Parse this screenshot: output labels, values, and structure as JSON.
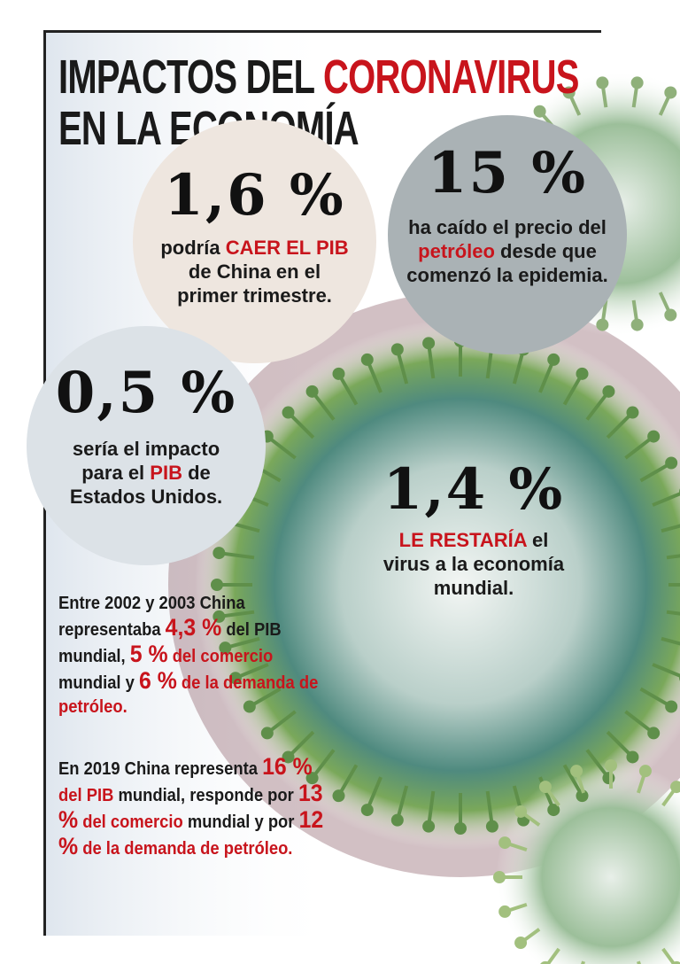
{
  "header": {
    "title": [
      {
        "text": "IMPACTOS DEL ",
        "color": "#1a1a1a"
      },
      {
        "text": "CORONAVIRUS",
        "color": "#c8141c"
      },
      {
        "text": "EN LA ECONOMÍA",
        "color": "#1a1a1a"
      }
    ]
  },
  "stats": [
    {
      "figure": "1,6 %",
      "text": [
        {
          "text": "podría ",
          "color": "#1a1a1a"
        },
        {
          "text": "CAER EL PIB",
          "color": "#c8141c"
        },
        {
          "text": " de China en el primer trimestre.",
          "color": "#1a1a1a"
        }
      ]
    },
    {
      "figure": "15 %",
      "text": [
        {
          "text": "ha caído el precio del ",
          "color": "#1a1a1a"
        },
        {
          "text": "petróleo",
          "color": "#c8141c"
        },
        {
          "text": " desde que comenzó la epidemia.",
          "color": "#1a1a1a"
        }
      ]
    },
    {
      "figure": "0,5 %",
      "text": [
        {
          "text": "sería el impacto para el ",
          "color": "#1a1a1a"
        },
        {
          "text": "PIB",
          "color": "#c8141c"
        },
        {
          "text": " de Estados Unidos.",
          "color": "#1a1a1a"
        }
      ]
    },
    {
      "figure": "1,4 %",
      "text": [
        {
          "text": "LE RESTARÍA",
          "color": "#c8141c"
        },
        {
          "text": " el virus a la economía mundial.",
          "color": "#1a1a1a"
        }
      ]
    }
  ],
  "paragraphs": [
    [
      {
        "text": "Entre 2002 y 2003 China representaba ",
        "color": "#1a1a1a"
      },
      {
        "text": "4,3 %",
        "color": "#c8141c"
      },
      {
        "text": " del PIB",
        "color": "#1a1a1a"
      },
      {
        "text": " mundial, ",
        "color": "#1a1a1a"
      },
      {
        "text": "5 %",
        "color": "#c8141c"
      },
      {
        "text": " del comercio",
        "color": "#c8141c"
      },
      {
        "text": " mundial y ",
        "color": "#1a1a1a"
      },
      {
        "text": "6 %",
        "color": "#c8141c"
      },
      {
        "text": " de la demanda de petróleo.",
        "color": "#c8141c"
      }
    ],
    [
      {
        "text": "En 2019 China representa ",
        "color": "#1a1a1a"
      },
      {
        "text": "16 %",
        "color": "#c8141c"
      },
      {
        "text": " del PIB",
        "color": "#c8141c"
      },
      {
        "text": " mundial, responde por ",
        "color": "#1a1a1a"
      },
      {
        "text": "13 %",
        "color": "#c8141c"
      },
      {
        "text": " del comercio",
        "color": "#c8141c"
      },
      {
        "text": " mundial y por ",
        "color": "#1a1a1a"
      },
      {
        "text": "12 %",
        "color": "#c8141c"
      },
      {
        "text": " de la demanda de petróleo.",
        "color": "#c8141c"
      }
    ]
  ]
}
